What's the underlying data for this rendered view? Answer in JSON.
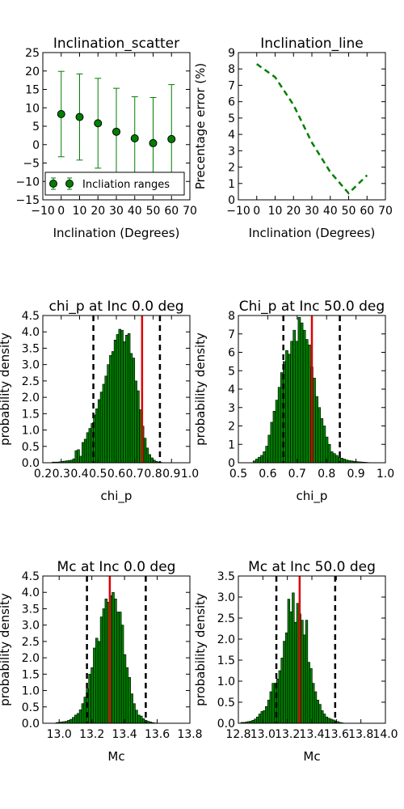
{
  "chart_data": [
    {
      "id": "p1",
      "type": "scatter",
      "title": "Inclination_scatter",
      "xlabel": "Inclination (Degrees)",
      "ylabel": "",
      "xlim": [
        -10,
        70
      ],
      "ylim": [
        -15,
        25
      ],
      "xticks": [
        -10,
        0,
        10,
        20,
        30,
        40,
        50,
        60,
        70
      ],
      "xtick_labels": [
        "−10",
        "0",
        "10",
        "20",
        "30",
        "40",
        "50",
        "60",
        "70"
      ],
      "yticks": [
        -15,
        -10,
        -5,
        0,
        5,
        10,
        15,
        20,
        25
      ],
      "ytick_labels": [
        "−15",
        "−10",
        "−5",
        "0",
        "5",
        "10",
        "15",
        "20",
        "25"
      ],
      "points": [
        {
          "x": 0,
          "y": 8.3,
          "lo": -3.3,
          "hi": 19.9
        },
        {
          "x": 10,
          "y": 7.5,
          "lo": -4.2,
          "hi": 19.2
        },
        {
          "x": 20,
          "y": 5.8,
          "lo": -6.4,
          "hi": 18.0
        },
        {
          "x": 30,
          "y": 3.5,
          "lo": -8.3,
          "hi": 15.3
        },
        {
          "x": 40,
          "y": 1.7,
          "lo": -9.6,
          "hi": 13.0
        },
        {
          "x": 50,
          "y": 0.4,
          "lo": -12.0,
          "hi": 12.8
        },
        {
          "x": 60,
          "y": 1.5,
          "lo": -13.3,
          "hi": 16.3
        }
      ],
      "legend": {
        "label": "Incliation ranges",
        "loc": "lower-left"
      },
      "color": "#007f00"
    },
    {
      "id": "p2",
      "type": "line",
      "title": "Inclination_line",
      "xlabel": "Inclination (Degrees)",
      "ylabel": "Precentage error (%)",
      "xlim": [
        -10,
        70
      ],
      "ylim": [
        0,
        9
      ],
      "xticks": [
        -10,
        0,
        10,
        20,
        30,
        40,
        50,
        60,
        70
      ],
      "xtick_labels": [
        "−10",
        "0",
        "10",
        "20",
        "30",
        "40",
        "50",
        "60",
        "70"
      ],
      "yticks": [
        0,
        1,
        2,
        3,
        4,
        5,
        6,
        7,
        8,
        9
      ],
      "ytick_labels": [
        "0",
        "1",
        "2",
        "3",
        "4",
        "5",
        "6",
        "7",
        "8",
        "9"
      ],
      "x": [
        0,
        10,
        20,
        30,
        40,
        50,
        60
      ],
      "y": [
        8.3,
        7.5,
        5.8,
        3.5,
        1.7,
        0.4,
        1.5
      ],
      "style": "dashed",
      "color": "#007f00"
    },
    {
      "id": "p3",
      "type": "bar",
      "title": "chi_p at Inc 0.0 deg",
      "xlabel": "chi_p",
      "ylabel": "probability density",
      "xlim": [
        0.2,
        1.0
      ],
      "ylim": [
        0,
        4.5
      ],
      "xticks": [
        0.2,
        0.3,
        0.4,
        0.5,
        0.6,
        0.7,
        0.8,
        0.9,
        1.0
      ],
      "xtick_labels": [
        "0.2",
        "0.3",
        "0.4",
        "0.5",
        "0.6",
        "0.7",
        "0.8",
        "0.9",
        "1.0"
      ],
      "yticks": [
        0,
        0.5,
        1.0,
        1.5,
        2.0,
        2.5,
        3.0,
        3.5,
        4.0,
        4.5
      ],
      "ytick_labels": [
        "0.0",
        "0.5",
        "1.0",
        "1.5",
        "2.0",
        "2.5",
        "3.0",
        "3.5",
        "4.0",
        "4.5"
      ],
      "bin_start": 0.25,
      "bin_width": 0.0125,
      "values": [
        0.02,
        0.02,
        0.02,
        0.03,
        0.04,
        0.05,
        0.06,
        0.07,
        0.08,
        0.12,
        0.37,
        0.4,
        0.2,
        0.62,
        0.72,
        0.92,
        1.05,
        1.2,
        1.46,
        1.65,
        1.93,
        2.16,
        2.4,
        2.65,
        3.0,
        3.28,
        3.4,
        3.75,
        3.92,
        4.08,
        4.05,
        3.7,
        3.9,
        3.95,
        3.34,
        3.2,
        2.5,
        2.2,
        1.62,
        1.12,
        0.75,
        0.45,
        0.25,
        0.15,
        0.08,
        0.04,
        0.02,
        0.01
      ],
      "vlines": {
        "dashed": [
          0.475,
          0.837
        ],
        "solid": 0.74
      },
      "color": "#007f00"
    },
    {
      "id": "p4",
      "type": "bar",
      "title": "Chi_p at Inc 50.0 deg",
      "xlabel": "chi_p",
      "ylabel": "probability density",
      "xlim": [
        0.5,
        1.0
      ],
      "ylim": [
        0,
        8
      ],
      "xticks": [
        0.5,
        0.6,
        0.7,
        0.8,
        0.9,
        1.0
      ],
      "xtick_labels": [
        "0.5",
        "0.6",
        "0.7",
        "0.8",
        "0.9",
        "1.0"
      ],
      "yticks": [
        0,
        1,
        2,
        3,
        4,
        5,
        6,
        7,
        8
      ],
      "ytick_labels": [
        "0",
        "1",
        "2",
        "3",
        "4",
        "5",
        "6",
        "7",
        "8"
      ],
      "bin_start": 0.55,
      "bin_width": 0.0085,
      "values": [
        0.1,
        0.2,
        0.3,
        0.4,
        0.6,
        0.9,
        1.5,
        2.2,
        2.8,
        3.4,
        4.1,
        4.9,
        5.5,
        6.1,
        5.9,
        6.6,
        7.2,
        6.6,
        7.9,
        7.6,
        7.2,
        6.7,
        6.4,
        5.2,
        4.6,
        3.6,
        3.0,
        2.4,
        2.0,
        1.4,
        1.0,
        0.6,
        0.5,
        0.4,
        0.3,
        0.25,
        0.2,
        0.15,
        0.12,
        0.1,
        0.08,
        0.06,
        0.05,
        0.04,
        0.03,
        0.02,
        0.01
      ],
      "vlines": {
        "dashed": [
          0.653,
          0.845
        ],
        "solid": 0.75
      },
      "color": "#007f00"
    },
    {
      "id": "p5",
      "type": "bar",
      "title": "Mc at Inc 0.0 deg",
      "xlabel": "Mc",
      "ylabel": "probability density",
      "xlim": [
        12.9,
        13.8
      ],
      "ylim": [
        0,
        4.5
      ],
      "xticks": [
        13.0,
        13.2,
        13.4,
        13.6,
        13.8
      ],
      "xtick_labels": [
        "13.0",
        "13.2",
        "13.4",
        "13.6",
        "13.8"
      ],
      "yticks": [
        0,
        0.5,
        1.0,
        1.5,
        2.0,
        2.5,
        3.0,
        3.5,
        4.0,
        4.5
      ],
      "ytick_labels": [
        "0.0",
        "0.5",
        "1.0",
        "1.5",
        "2.0",
        "2.5",
        "3.0",
        "3.5",
        "4.0",
        "4.5"
      ],
      "bin_start": 12.98,
      "bin_width": 0.0143,
      "values": [
        0.02,
        0.03,
        0.04,
        0.05,
        0.06,
        0.09,
        0.12,
        0.18,
        0.25,
        0.3,
        0.41,
        0.6,
        0.8,
        1.05,
        1.5,
        1.7,
        2.3,
        2.6,
        2.5,
        3.25,
        3.5,
        3.8,
        3.7,
        3.9,
        4.0,
        3.8,
        3.4,
        3.4,
        3.0,
        2.1,
        1.7,
        1.4,
        0.9,
        0.6,
        0.4,
        0.25,
        0.22,
        0.14,
        0.09,
        0.06,
        0.04,
        0.02,
        0.01
      ],
      "vlines": {
        "dashed": [
          13.17,
          13.53
        ],
        "solid": 13.31
      },
      "color": "#007f00"
    },
    {
      "id": "p6",
      "type": "bar",
      "title": "Mc at Inc 50.0 deg",
      "xlabel": "Mc",
      "ylabel": "probability density",
      "xlim": [
        12.8,
        14.0
      ],
      "ylim": [
        0,
        3.5
      ],
      "xticks": [
        12.8,
        13.0,
        13.2,
        13.4,
        13.6,
        13.8,
        14.0
      ],
      "xtick_labels": [
        "12.8",
        "13.0",
        "13.2",
        "13.4",
        "13.6",
        "13.8",
        "14.0"
      ],
      "yticks": [
        0,
        0.5,
        1.0,
        1.5,
        2.0,
        2.5,
        3.0,
        3.5
      ],
      "ytick_labels": [
        "0.0",
        "0.5",
        "1.0",
        "1.5",
        "2.0",
        "2.5",
        "3.0",
        "3.5"
      ],
      "bin_start": 12.82,
      "bin_width": 0.0182,
      "values": [
        0.02,
        0.02,
        0.03,
        0.04,
        0.05,
        0.07,
        0.1,
        0.15,
        0.22,
        0.28,
        0.3,
        0.4,
        0.55,
        0.75,
        0.95,
        0.95,
        1.05,
        1.25,
        1.55,
        1.95,
        2.15,
        2.95,
        2.65,
        3.1,
        2.4,
        2.85,
        2.6,
        2.45,
        2.1,
        2.45,
        1.45,
        1.3,
        0.95,
        0.75,
        0.55,
        0.45,
        0.3,
        0.22,
        0.15,
        0.12,
        0.1,
        0.08,
        0.06,
        0.04,
        0.02,
        0.01
      ],
      "vlines": {
        "dashed": [
          13.11,
          13.59
        ],
        "solid": 13.3
      },
      "color": "#007f00"
    }
  ]
}
